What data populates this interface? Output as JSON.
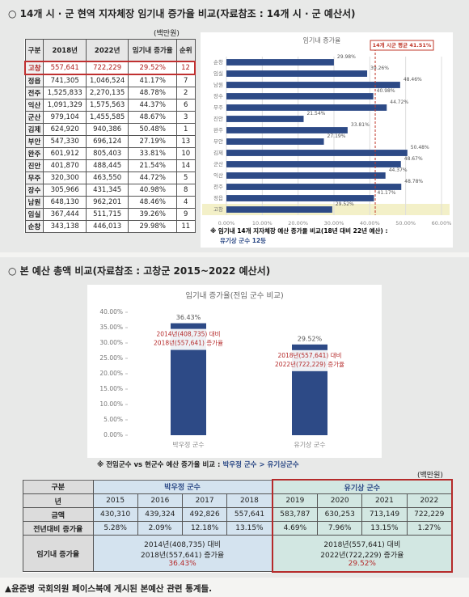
{
  "section1": {
    "title": "○ 14개 시 · 군 현역 지자체장 임기내 증가율 비교(자료참조 : 14개 시 · 군 예산서)",
    "unit": "(백만원)",
    "note": "※ 임기내 14개 지자체장 예산 증가율 비교(18년 대비 22년 예산) :",
    "note2": "유기상 군수 12등"
  },
  "table1": {
    "header": [
      "구분",
      "2018년",
      "2022년",
      "임기내 증가율",
      "순위"
    ],
    "rows": [
      [
        "고창",
        "557,641",
        "722,229",
        "29.52%",
        "12"
      ],
      [
        "정읍",
        "741,305",
        "1,046,524",
        "41.17%",
        "7"
      ],
      [
        "전주",
        "1,525,833",
        "2,270,135",
        "48.78%",
        "2"
      ],
      [
        "익산",
        "1,091,329",
        "1,575,563",
        "44.37%",
        "6"
      ],
      [
        "군산",
        "979,104",
        "1,455,585",
        "48.67%",
        "3"
      ],
      [
        "김제",
        "624,920",
        "940,386",
        "50.48%",
        "1"
      ],
      [
        "부안",
        "547,330",
        "696,124",
        "27.19%",
        "13"
      ],
      [
        "완주",
        "601,912",
        "805,403",
        "33.81%",
        "10"
      ],
      [
        "진안",
        "401,870",
        "488,445",
        "21.54%",
        "14"
      ],
      [
        "무주",
        "320,300",
        "463,550",
        "44.72%",
        "5"
      ],
      [
        "장수",
        "305,966",
        "431,345",
        "40.98%",
        "8"
      ],
      [
        "남원",
        "648,130",
        "962,201",
        "48.46%",
        "4"
      ],
      [
        "임실",
        "367,444",
        "511,715",
        "39.26%",
        "9"
      ],
      [
        "순창",
        "343,138",
        "446,013",
        "29.98%",
        "11"
      ]
    ]
  },
  "chart_data": [
    {
      "type": "bar",
      "orientation": "horizontal",
      "title": "임기내 증가율",
      "color": "#2d4a86",
      "categories": [
        "순창",
        "임실",
        "남원",
        "장수",
        "무주",
        "진안",
        "완주",
        "부안",
        "김제",
        "군산",
        "익산",
        "전주",
        "정읍",
        "고창"
      ],
      "values": [
        29.98,
        39.26,
        48.46,
        40.98,
        44.72,
        21.54,
        33.81,
        27.19,
        50.48,
        48.67,
        44.37,
        48.78,
        41.17,
        29.52
      ],
      "value_labels": [
        "29.98%",
        "39.26%",
        "48.46%",
        "40.98%",
        "44.72%",
        "21.54%",
        "33.81%",
        "27.19%",
        "50.48%",
        "48.67%",
        "44.37%",
        "48.78%",
        "41.17%",
        "29.52%"
      ],
      "xlim": [
        0,
        60
      ],
      "xticks": [
        {
          "value": 0,
          "label": "0.00%"
        },
        {
          "value": 10,
          "label": "10.00%"
        },
        {
          "value": 20,
          "label": "20.00%"
        },
        {
          "value": 30,
          "label": "30.00%"
        },
        {
          "value": 40,
          "label": "40.00%"
        },
        {
          "value": 50,
          "label": "50.00%"
        },
        {
          "value": 60,
          "label": "60.00%"
        }
      ],
      "grid": true,
      "average": 41.51,
      "average_label": "14개 시군 평균 41.51%",
      "average_color": "#c0392b"
    },
    {
      "type": "bar",
      "orientation": "vertical",
      "title": "임기내 증가율(전임 군수 비교)",
      "color": "#2d4a86",
      "categories": [
        "박우정 군수",
        "유기상 군수"
      ],
      "values": [
        36.43,
        29.52
      ],
      "value_labels": [
        "36.43%",
        "29.52%"
      ],
      "ylim": [
        0,
        40
      ],
      "yticks": [
        {
          "value": 0,
          "label": "0.00%"
        },
        {
          "value": 5,
          "label": "5.00%"
        },
        {
          "value": 10,
          "label": "10.00%"
        },
        {
          "value": 15,
          "label": "15.00%"
        },
        {
          "value": 20,
          "label": "20.00%"
        },
        {
          "value": 25,
          "label": "25.00%"
        },
        {
          "value": 30,
          "label": "30.00%"
        },
        {
          "value": 35,
          "label": "35.00%"
        },
        {
          "value": 40,
          "label": "40.00%"
        }
      ],
      "grid": false,
      "annotations": [
        [
          "2014년(408,735) 대비",
          "2018년(557,641) 증가율"
        ],
        [
          "2018년(557,641) 대비",
          "2022년(722,229) 증가율"
        ]
      ],
      "annotation_color": "#b52a2a"
    }
  ],
  "section2": {
    "title": "○ 본 예산 총액 비교(자료참조 : 고창군 2015~2022 예산서)",
    "note": "※ 전임군수 vs 현군수 예산 증가율 비교 :",
    "note_result": "박우정 군수 > 유기상군수"
  },
  "table2": {
    "unit": "(백만원)",
    "header": [
      "구분",
      "박우정 군수",
      "유기상 군수"
    ],
    "years_label": "년",
    "years": [
      "2015",
      "2016",
      "2017",
      "2018",
      "2019",
      "2020",
      "2021",
      "2022"
    ],
    "amount_label": "금액",
    "amounts": [
      "430,310",
      "439,324",
      "492,826",
      "557,641",
      "583,787",
      "630,253",
      "713,149",
      "722,229"
    ],
    "growth_label": "전년대비 증가율",
    "growth": [
      "5.28%",
      "2.09%",
      "12.18%",
      "13.15%",
      "4.69%",
      "7.96%",
      "13.15%",
      "1.27%"
    ],
    "term_label": "임기내 증가율",
    "term": [
      {
        "line1": "2014년(408,735) 대비",
        "line2": "2018년(557,641) 증가율",
        "rate": "36.43%"
      },
      {
        "line1": "2018년(557,641) 대비",
        "line2": "2022년(722,229) 증가율",
        "rate": "29.52%"
      }
    ]
  },
  "caption": "▲윤준병 국회의원 페이스북에 게시된 본예산 관련 통계들."
}
